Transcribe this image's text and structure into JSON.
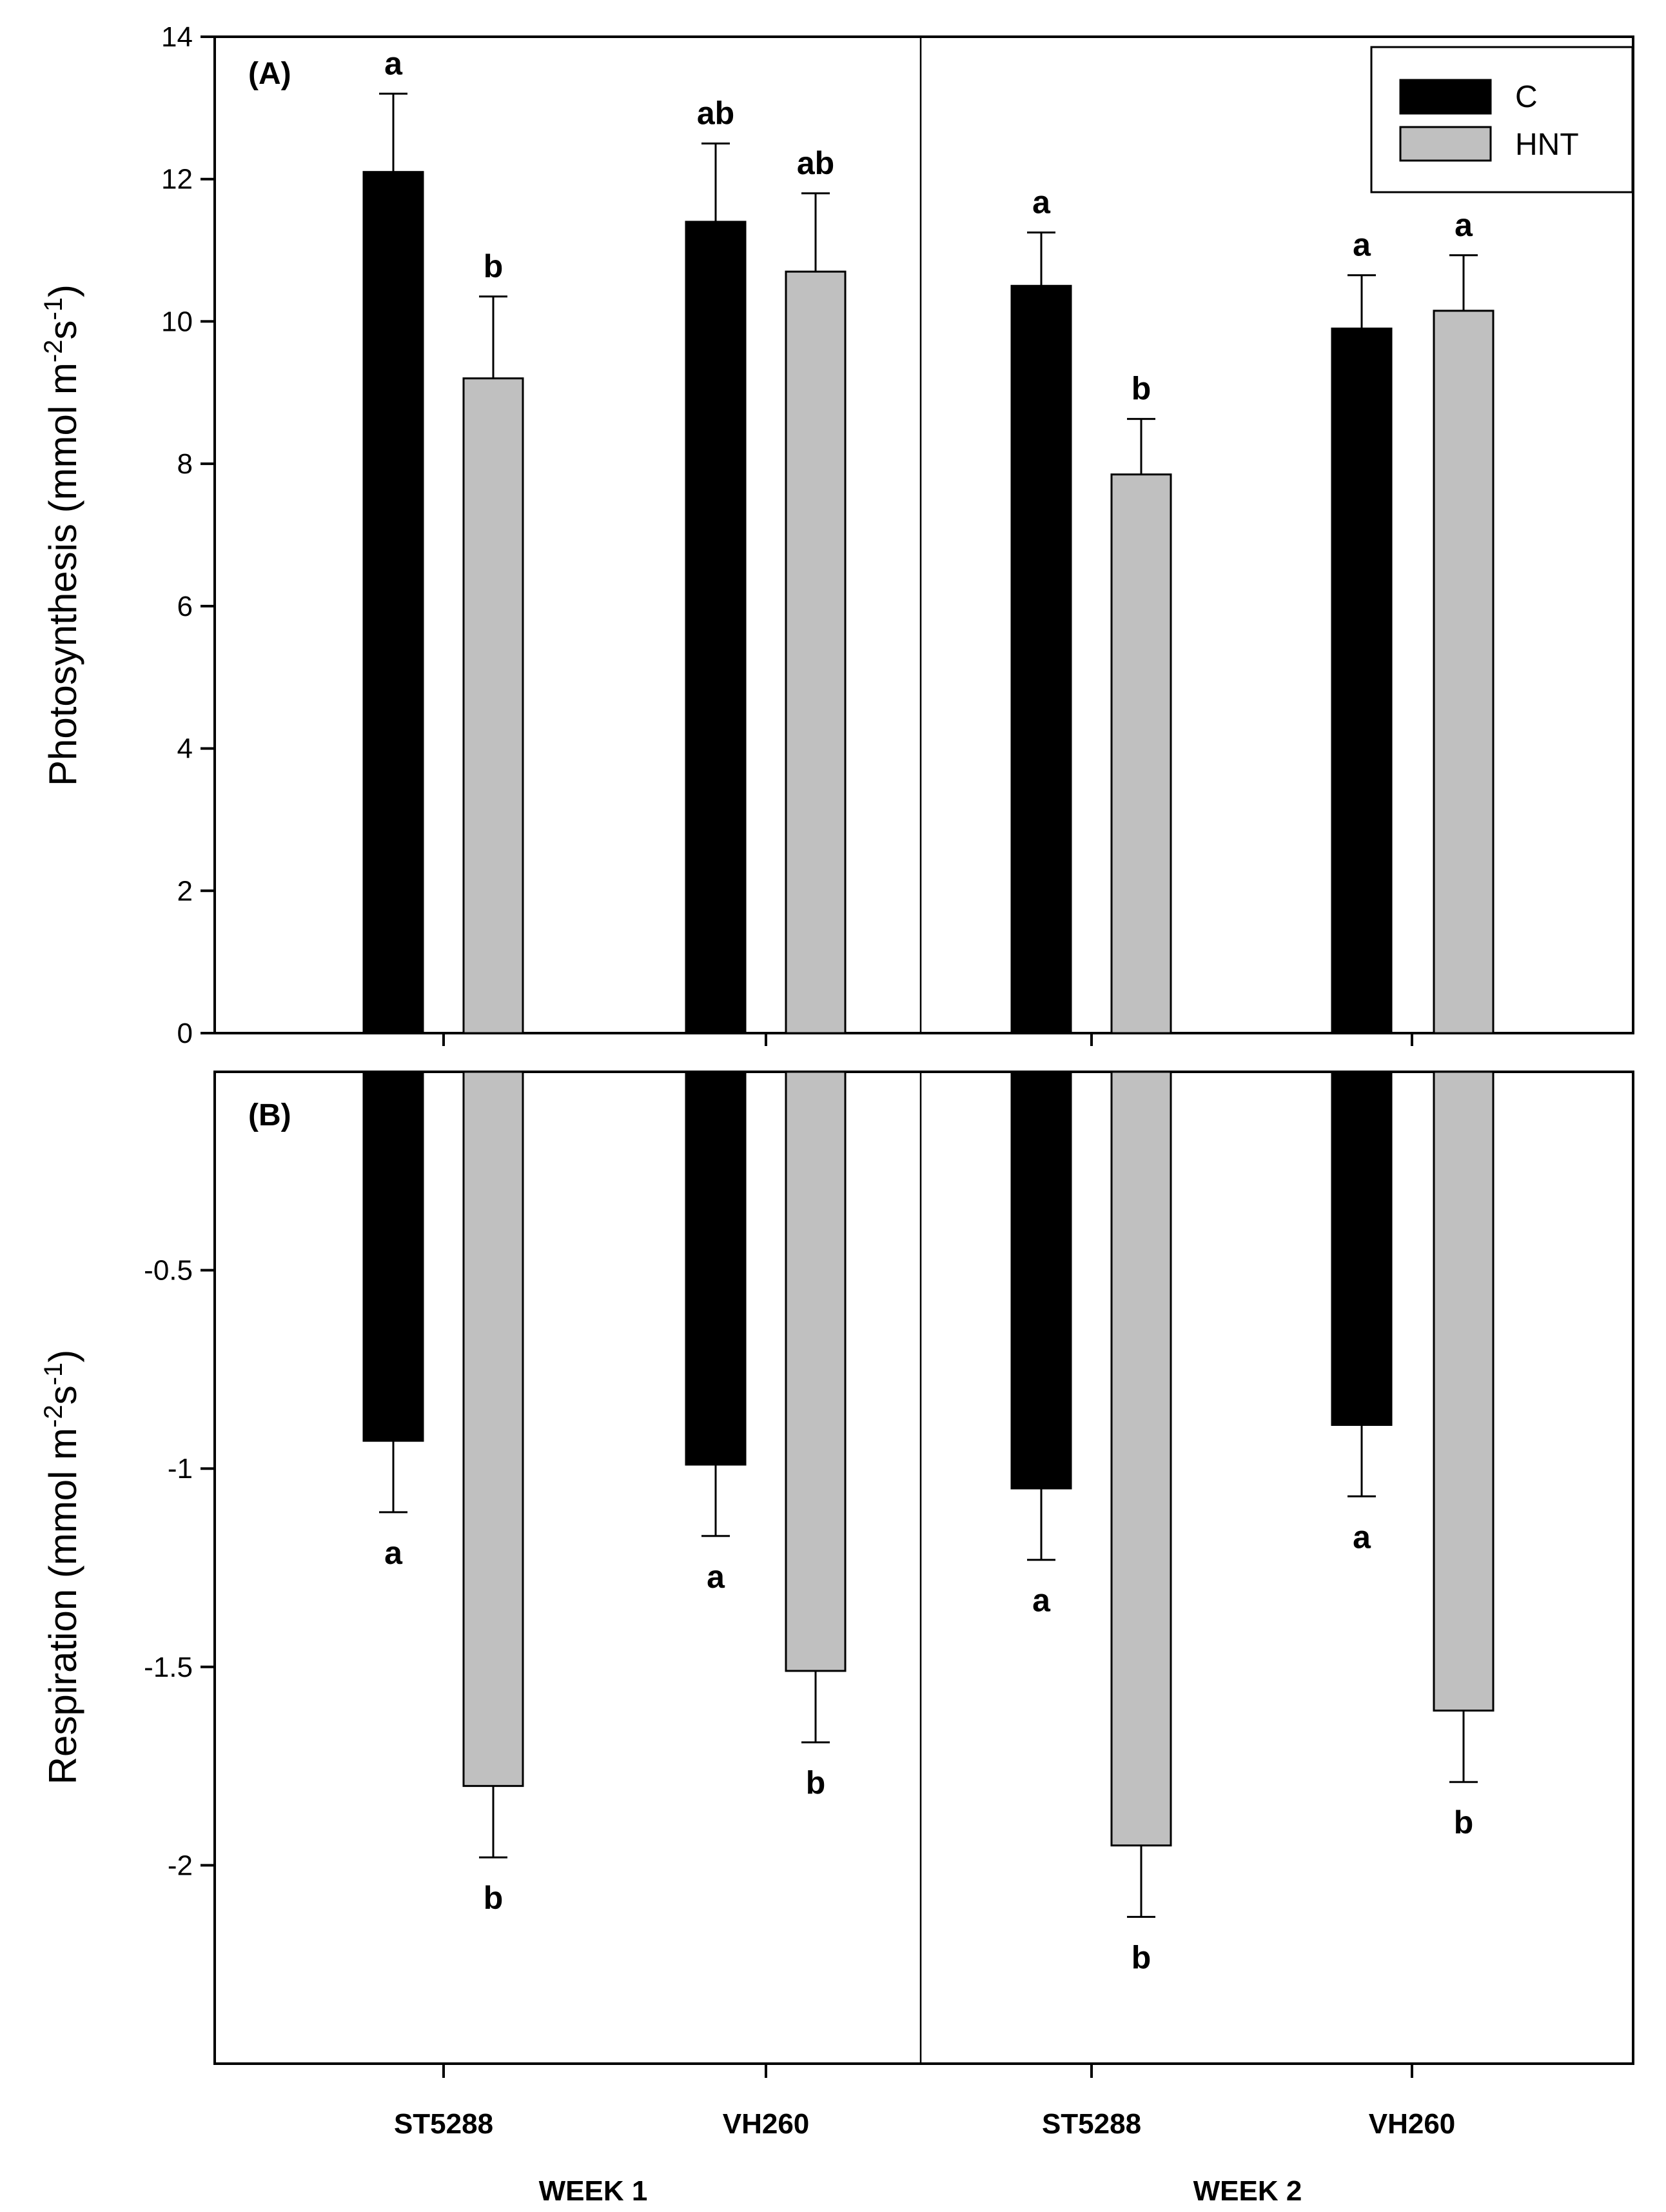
{
  "colors": {
    "C": "#000000",
    "HNT": "#c0c0c0",
    "axis": "#000000"
  },
  "chart_data": [
    {
      "type": "bar",
      "panel_label": "(A)",
      "ylabel_main": "Photosynthesis (mmol m",
      "ylabel_sup1": "-2",
      "ylabel_mid": "s",
      "ylabel_sup2": "-1",
      "ylabel_end": ")",
      "ylim": [
        0,
        14
      ],
      "yticks": [
        0,
        2,
        4,
        6,
        8,
        10,
        12,
        14
      ],
      "ytick_labels": [
        "0",
        "2",
        "4",
        "6",
        "8",
        "10",
        "12",
        "14"
      ],
      "categories": [
        "ST5288",
        "VH260",
        "ST5288",
        "VH260"
      ],
      "groups": [
        "WEEK 1",
        "WEEK 1",
        "WEEK 2",
        "WEEK 2"
      ],
      "series": [
        {
          "name": "C",
          "values": [
            12.1,
            11.4,
            10.5,
            9.9
          ],
          "errors": [
            1.1,
            1.1,
            0.75,
            0.75
          ],
          "letters": [
            "a",
            "ab",
            "a",
            "a"
          ]
        },
        {
          "name": "HNT",
          "values": [
            9.2,
            10.7,
            7.85,
            10.15
          ],
          "errors": [
            1.15,
            1.1,
            0.78,
            0.78
          ],
          "letters": [
            "b",
            "ab",
            "b",
            "a"
          ]
        }
      ],
      "legend": [
        "C",
        "HNT"
      ],
      "legend_position": "top-right"
    },
    {
      "type": "bar",
      "panel_label": "(B)",
      "ylabel_main": "Respiration (mmol m",
      "ylabel_sup1": "-2",
      "ylabel_mid": "s",
      "ylabel_sup2": "-1",
      "ylabel_end": ")",
      "ylim": [
        -2.5,
        0
      ],
      "yticks": [
        -0.5,
        -1,
        -1.5,
        -2
      ],
      "ytick_labels": [
        "-0.5",
        "-1",
        "-1.5",
        "-2"
      ],
      "categories": [
        "ST5288",
        "VH260",
        "ST5288",
        "VH260"
      ],
      "groups": [
        "WEEK 1",
        "WEEK 1",
        "WEEK 2",
        "WEEK 2"
      ],
      "series": [
        {
          "name": "C",
          "values": [
            -0.93,
            -0.99,
            -1.05,
            -0.89
          ],
          "errors": [
            0.18,
            0.18,
            0.18,
            0.18
          ],
          "letters": [
            "a",
            "a",
            "a",
            "a"
          ]
        },
        {
          "name": "HNT",
          "values": [
            -1.8,
            -1.51,
            -1.95,
            -1.61
          ],
          "errors": [
            0.18,
            0.18,
            0.18,
            0.18
          ],
          "letters": [
            "b",
            "b",
            "b",
            "b"
          ]
        }
      ],
      "xtick_labels": [
        "ST5288",
        "VH260",
        "ST5288",
        "VH260"
      ],
      "group_labels": [
        "WEEK 1",
        "WEEK 2"
      ]
    }
  ]
}
